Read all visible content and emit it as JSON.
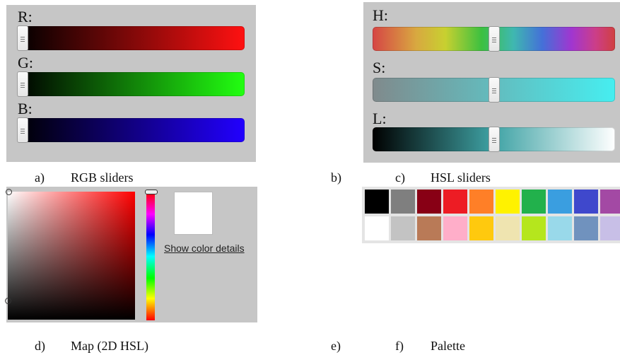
{
  "rgb": {
    "labels": [
      "R:",
      "G:",
      "B:"
    ],
    "tracks": [
      {
        "from": "#000000",
        "to": "#ff1111",
        "value": 0
      },
      {
        "from": "#000000",
        "to": "#22ff11",
        "value": 0
      },
      {
        "from": "#000000",
        "to": "#2200ff",
        "value": 0
      }
    ]
  },
  "hsl": {
    "labels": [
      "H:",
      "S:",
      "L:"
    ],
    "tracks": [
      {
        "name": "hue",
        "value": 0.5
      },
      {
        "name": "saturation",
        "value": 0.5
      },
      {
        "name": "lightness",
        "value": 0.5
      }
    ]
  },
  "map": {
    "details_link": "Show color details",
    "preview_color": "#ffffff"
  },
  "palette": {
    "row1": [
      "#000000",
      "#7f7f7f",
      "#880015",
      "#ed1c24",
      "#ff7f27",
      "#fff200",
      "#22b14c",
      "#3a9ee0",
      "#3f48cc",
      "#a349a4"
    ],
    "row2": [
      "#ffffff",
      "#c3c3c3",
      "#b97a57",
      "#ffaec9",
      "#ffc90e",
      "#efe4b0",
      "#b5e61d",
      "#99d9ea",
      "#7092be",
      "#c8bfe7"
    ]
  },
  "captions": {
    "a_letter": "a)",
    "a_text": "RGB sliders",
    "b_letter": "b)",
    "c_letter": "c)",
    "c_text": "HSL sliders",
    "d_letter": "d)",
    "d_text": "Map (2D HSL)",
    "e_letter": "e)",
    "f_letter": "f)",
    "f_text": "Palette"
  }
}
